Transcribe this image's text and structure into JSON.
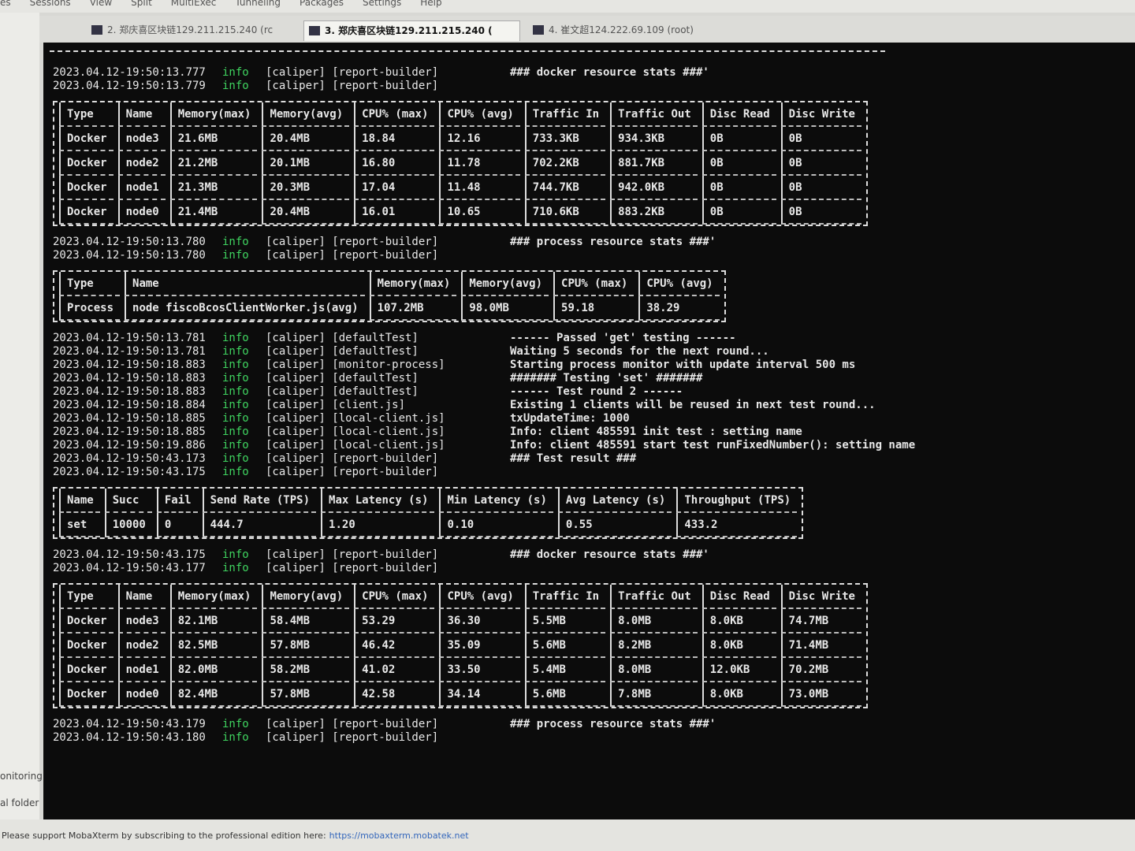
{
  "menu": [
    "es",
    "Sessions",
    "View",
    "Split",
    "MultiExec",
    "Tunneling",
    "Packages",
    "Settings",
    "Help"
  ],
  "tabs": [
    "2. 郑庆喜区块链129.211.215.240 (rc",
    "3. 郑庆喜区块链129.211.215.240 (",
    "4. 崔文超124.222.69.109 (root)"
  ],
  "sidebar": [
    "onitoring",
    "al folder"
  ],
  "terminal": [
    {
      "kind": "log",
      "lines": [
        [
          "2023.04.12-19:50:13.777",
          "info",
          "[caliper] [report-builder]",
          "### docker resource stats ###'"
        ],
        [
          "2023.04.12-19:50:13.779",
          "info",
          "[caliper] [report-builder]"
        ]
      ]
    },
    {
      "kind": "table",
      "header": [
        "Type",
        "Name",
        "Memory(max)",
        "Memory(avg)",
        "CPU% (max)",
        "CPU% (avg)",
        "Traffic In",
        "Traffic Out",
        "Disc Read",
        "Disc Write"
      ],
      "rows": [
        [
          "Docker",
          "node3",
          "21.6MB",
          "20.4MB",
          "18.84",
          "12.16",
          "733.3KB",
          "934.3KB",
          "0B",
          "0B"
        ],
        [
          "Docker",
          "node2",
          "21.2MB",
          "20.1MB",
          "16.80",
          "11.78",
          "702.2KB",
          "881.7KB",
          "0B",
          "0B"
        ],
        [
          "Docker",
          "node1",
          "21.3MB",
          "20.3MB",
          "17.04",
          "11.48",
          "744.7KB",
          "942.0KB",
          "0B",
          "0B"
        ],
        [
          "Docker",
          "node0",
          "21.4MB",
          "20.4MB",
          "16.01",
          "10.65",
          "710.6KB",
          "883.2KB",
          "0B",
          "0B"
        ]
      ]
    },
    {
      "kind": "log",
      "lines": [
        [
          "2023.04.12-19:50:13.780",
          "info",
          "[caliper] [report-builder]",
          "### process resource stats ###'"
        ],
        [
          "2023.04.12-19:50:13.780",
          "info",
          "[caliper] [report-builder]"
        ]
      ]
    },
    {
      "kind": "table",
      "header": [
        "Type",
        "Name",
        "Memory(max)",
        "Memory(avg)",
        "CPU% (max)",
        "CPU% (avg)"
      ],
      "rows": [
        [
          "Process",
          "node fiscoBcosClientWorker.js(avg)",
          "107.2MB",
          "98.0MB",
          "59.18",
          "38.29"
        ]
      ]
    },
    {
      "kind": "log",
      "lines": [
        [
          "2023.04.12-19:50:13.781",
          "info",
          "[caliper] [defaultTest]",
          "------ Passed 'get' testing ------"
        ],
        [
          "2023.04.12-19:50:13.781",
          "info",
          "[caliper] [defaultTest]",
          "Waiting 5 seconds for the next round..."
        ],
        [
          "2023.04.12-19:50:18.883",
          "info",
          "[caliper] [monitor-process]",
          "Starting process monitor with update interval 500 ms"
        ],
        [
          "2023.04.12-19:50:18.883",
          "info",
          "[caliper] [defaultTest]",
          "####### Testing 'set' #######"
        ],
        [
          "2023.04.12-19:50:18.883",
          "info",
          "[caliper] [defaultTest]",
          "------ Test round 2 ------"
        ],
        [
          "2023.04.12-19:50:18.884",
          "info",
          "[caliper] [client.js]",
          "Existing 1 clients will be reused in next test round..."
        ],
        [
          "2023.04.12-19:50:18.885",
          "info",
          "[caliper] [local-client.js]",
          "txUpdateTime: 1000"
        ],
        [
          "2023.04.12-19:50:18.885",
          "info",
          "[caliper] [local-client.js]",
          "Info: client 485591 init test : setting name"
        ],
        [
          "2023.04.12-19:50:19.886",
          "info",
          "[caliper] [local-client.js]",
          "Info: client 485591 start test runFixedNumber(): setting name"
        ],
        [
          "2023.04.12-19:50:43.173",
          "info",
          "[caliper] [report-builder]",
          "### Test result ###"
        ],
        [
          "2023.04.12-19:50:43.175",
          "info",
          "[caliper] [report-builder]"
        ]
      ]
    },
    {
      "kind": "table",
      "header": [
        "Name",
        "Succ",
        "Fail",
        "Send Rate (TPS)",
        "Max Latency (s)",
        "Min Latency (s)",
        "Avg Latency (s)",
        "Throughput (TPS)"
      ],
      "rows": [
        [
          "set",
          "10000",
          "0",
          "444.7",
          "1.20",
          "0.10",
          "0.55",
          "433.2"
        ]
      ]
    },
    {
      "kind": "log",
      "lines": [
        [
          "2023.04.12-19:50:43.175",
          "info",
          "[caliper] [report-builder]",
          "### docker resource stats ###'"
        ],
        [
          "2023.04.12-19:50:43.177",
          "info",
          "[caliper] [report-builder]"
        ]
      ]
    },
    {
      "kind": "table",
      "header": [
        "Type",
        "Name",
        "Memory(max)",
        "Memory(avg)",
        "CPU% (max)",
        "CPU% (avg)",
        "Traffic In",
        "Traffic Out",
        "Disc Read",
        "Disc Write"
      ],
      "rows": [
        [
          "Docker",
          "node3",
          "82.1MB",
          "58.4MB",
          "53.29",
          "36.30",
          "5.5MB",
          "8.0MB",
          "8.0KB",
          "74.7MB"
        ],
        [
          "Docker",
          "node2",
          "82.5MB",
          "57.8MB",
          "46.42",
          "35.09",
          "5.6MB",
          "8.2MB",
          "8.0KB",
          "71.4MB"
        ],
        [
          "Docker",
          "node1",
          "82.0MB",
          "58.2MB",
          "41.02",
          "33.50",
          "5.4MB",
          "8.0MB",
          "12.0KB",
          "70.2MB"
        ],
        [
          "Docker",
          "node0",
          "82.4MB",
          "57.8MB",
          "42.58",
          "34.14",
          "5.6MB",
          "7.8MB",
          "8.0KB",
          "73.0MB"
        ]
      ]
    },
    {
      "kind": "log",
      "lines": [
        [
          "2023.04.12-19:50:43.179",
          "info",
          "[caliper] [report-builder]",
          "### process resource stats ###'"
        ],
        [
          "2023.04.12-19:50:43.180",
          "info",
          "[caliper] [report-builder]"
        ]
      ]
    }
  ],
  "footer": {
    "text": "Please support MobaXterm by subscribing to the professional edition here:",
    "link": "https://mobaxterm.mobatek.net"
  }
}
